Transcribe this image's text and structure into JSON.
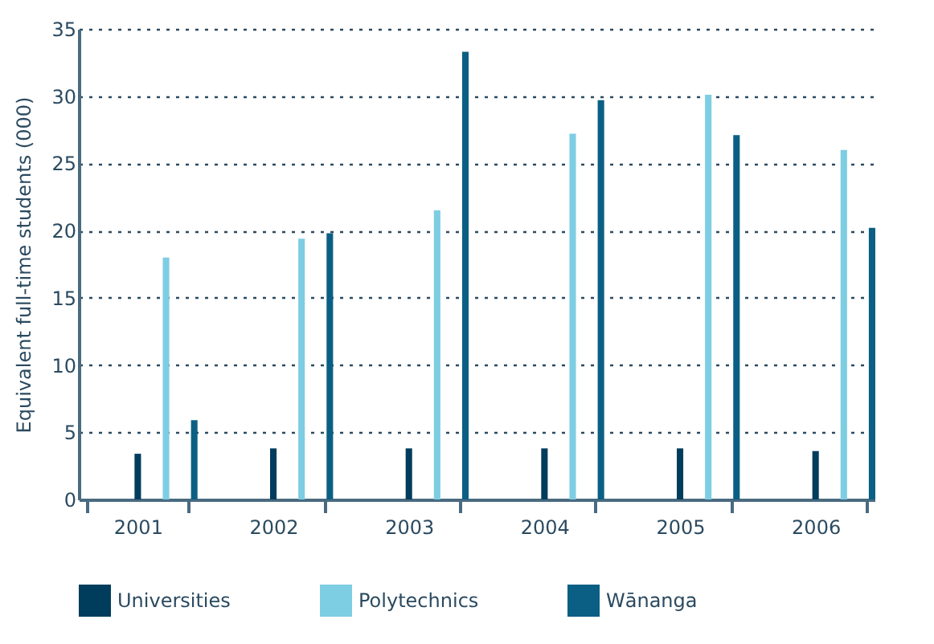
{
  "chart_data": {
    "type": "bar",
    "ylabel": "Equivalent full-time students (000)",
    "categories": [
      "2001",
      "2002",
      "2003",
      "2004",
      "2005",
      "2006"
    ],
    "series": [
      {
        "name": "Universities",
        "color": "#003d5c",
        "values": [
          3.4,
          3.8,
          3.8,
          3.8,
          3.8,
          3.6
        ]
      },
      {
        "name": "Polytechnics",
        "color": "#7dcde3",
        "values": [
          18,
          19.4,
          21.5,
          27.2,
          30.1,
          26
        ]
      },
      {
        "name": "Wānanga",
        "color": "#0b5f84",
        "values": [
          5.9,
          19.8,
          33.3,
          29.7,
          27.1,
          20.2
        ]
      }
    ],
    "ylim": [
      0,
      35
    ],
    "yticks": [
      0,
      5,
      10,
      15,
      20,
      25,
      30,
      35
    ],
    "grid": "y",
    "legend": "bottom"
  }
}
